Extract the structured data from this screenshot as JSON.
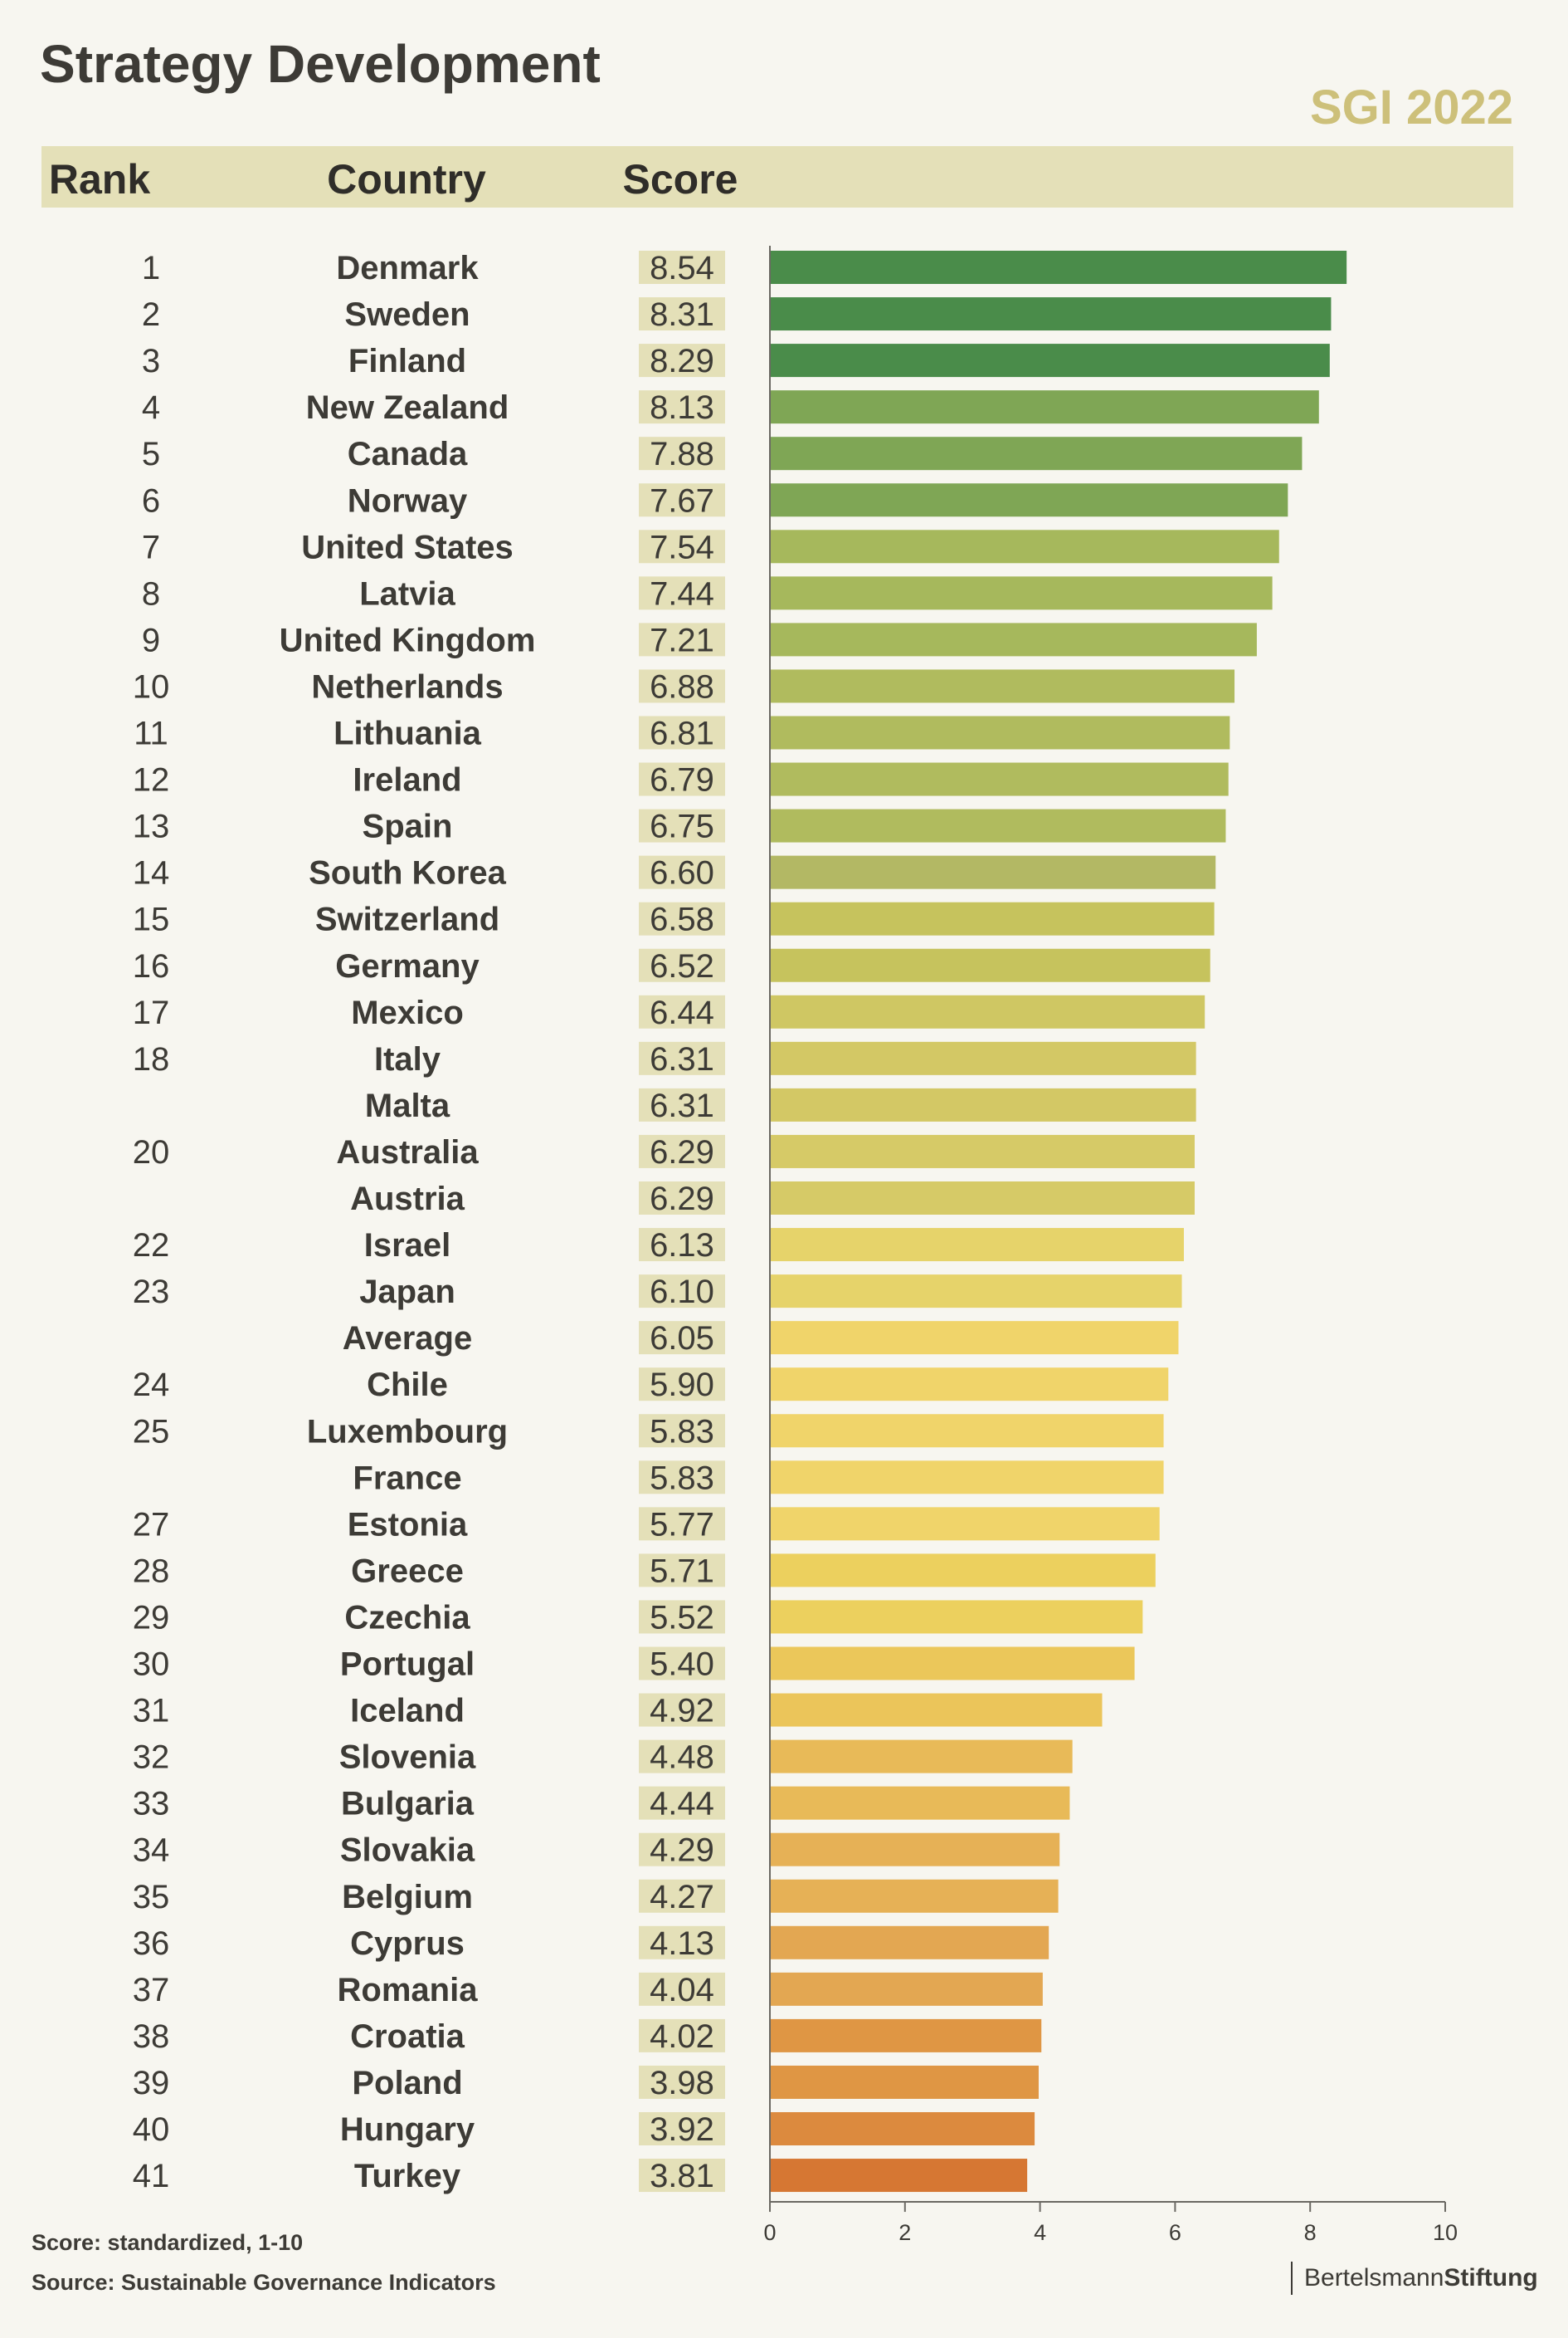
{
  "title": "Strategy Development",
  "edition": "SGI 2022",
  "header": {
    "rank": "Rank",
    "country": "Country",
    "score": "Score"
  },
  "footnote_score": "Score: standardized, 1-10",
  "footnote_source": "Source: Sustainable Governance Indicators",
  "logo": {
    "part1": "Bertelsmann",
    "part2": "Stiftung"
  },
  "colors": {
    "average_label": "#f0d46a",
    "score_box": "#e4e0b8",
    "background": "#f7f6f0"
  },
  "chart_data": {
    "type": "bar",
    "orientation": "horizontal",
    "title": "Strategy Development",
    "xlim": [
      0,
      10
    ],
    "xticks": [
      0,
      2,
      4,
      6,
      8,
      10
    ],
    "rows": [
      {
        "rank": "1",
        "country": "Denmark",
        "score": 8.54,
        "color": "#4a8c4a"
      },
      {
        "rank": "2",
        "country": "Sweden",
        "score": 8.31,
        "color": "#4a8c4a"
      },
      {
        "rank": "3",
        "country": "Finland",
        "score": 8.29,
        "color": "#4a8c4a"
      },
      {
        "rank": "4",
        "country": "New Zealand",
        "score": 8.13,
        "color": "#7fa655"
      },
      {
        "rank": "5",
        "country": "Canada",
        "score": 7.88,
        "color": "#7fa655"
      },
      {
        "rank": "6",
        "country": "Norway",
        "score": 7.67,
        "color": "#7fa655"
      },
      {
        "rank": "7",
        "country": "United States",
        "score": 7.54,
        "color": "#a6b85c"
      },
      {
        "rank": "8",
        "country": "Latvia",
        "score": 7.44,
        "color": "#a6b85c"
      },
      {
        "rank": "9",
        "country": "United Kingdom",
        "score": 7.21,
        "color": "#a6b85c"
      },
      {
        "rank": "10",
        "country": "Netherlands",
        "score": 6.88,
        "color": "#b0bb5e"
      },
      {
        "rank": "11",
        "country": "Lithuania",
        "score": 6.81,
        "color": "#b0bb5e"
      },
      {
        "rank": "12",
        "country": "Ireland",
        "score": 6.79,
        "color": "#b0bb5e"
      },
      {
        "rank": "13",
        "country": "Spain",
        "score": 6.75,
        "color": "#b0bb5e"
      },
      {
        "rank": "14",
        "country": "South Korea",
        "score": 6.6,
        "color": "#b3b864"
      },
      {
        "rank": "15",
        "country": "Switzerland",
        "score": 6.58,
        "color": "#c6c35d"
      },
      {
        "rank": "16",
        "country": "Germany",
        "score": 6.52,
        "color": "#c6c35d"
      },
      {
        "rank": "17",
        "country": "Mexico",
        "score": 6.44,
        "color": "#cfc763"
      },
      {
        "rank": "18",
        "country": "Italy",
        "score": 6.31,
        "color": "#d3c865"
      },
      {
        "rank": "",
        "country": "Malta",
        "score": 6.31,
        "color": "#d3c865"
      },
      {
        "rank": "20",
        "country": "Australia",
        "score": 6.29,
        "color": "#d6ca67"
      },
      {
        "rank": "",
        "country": "Austria",
        "score": 6.29,
        "color": "#d6ca67"
      },
      {
        "rank": "22",
        "country": "Israel",
        "score": 6.13,
        "color": "#e6d36a"
      },
      {
        "rank": "23",
        "country": "Japan",
        "score": 6.1,
        "color": "#e6d36a"
      },
      {
        "rank": "",
        "country": "Average",
        "score": 6.05,
        "color": "#f0d46a",
        "is_average": true
      },
      {
        "rank": "24",
        "country": "Chile",
        "score": 5.9,
        "color": "#f0d46a"
      },
      {
        "rank": "25",
        "country": "Luxembourg",
        "score": 5.83,
        "color": "#f0d46a"
      },
      {
        "rank": "",
        "country": "France",
        "score": 5.83,
        "color": "#f0d46a"
      },
      {
        "rank": "27",
        "country": "Estonia",
        "score": 5.77,
        "color": "#f0d46a"
      },
      {
        "rank": "28",
        "country": "Greece",
        "score": 5.71,
        "color": "#ecd05e"
      },
      {
        "rank": "29",
        "country": "Czechia",
        "score": 5.52,
        "color": "#ecd05e"
      },
      {
        "rank": "30",
        "country": "Portugal",
        "score": 5.4,
        "color": "#ebc75a"
      },
      {
        "rank": "31",
        "country": "Iceland",
        "score": 4.92,
        "color": "#ebc55a"
      },
      {
        "rank": "32",
        "country": "Slovenia",
        "score": 4.48,
        "color": "#e8ba58"
      },
      {
        "rank": "33",
        "country": "Bulgaria",
        "score": 4.44,
        "color": "#e8ba58"
      },
      {
        "rank": "34",
        "country": "Slovakia",
        "score": 4.29,
        "color": "#e6b156"
      },
      {
        "rank": "35",
        "country": "Belgium",
        "score": 4.27,
        "color": "#e6b156"
      },
      {
        "rank": "36",
        "country": "Cyprus",
        "score": 4.13,
        "color": "#e3a752"
      },
      {
        "rank": "37",
        "country": "Romania",
        "score": 4.04,
        "color": "#e3a752"
      },
      {
        "rank": "38",
        "country": "Croatia",
        "score": 4.02,
        "color": "#df9644"
      },
      {
        "rank": "39",
        "country": "Poland",
        "score": 3.98,
        "color": "#df9644"
      },
      {
        "rank": "40",
        "country": "Hungary",
        "score": 3.92,
        "color": "#dc8a3e"
      },
      {
        "rank": "41",
        "country": "Turkey",
        "score": 3.81,
        "color": "#d67733"
      }
    ]
  }
}
